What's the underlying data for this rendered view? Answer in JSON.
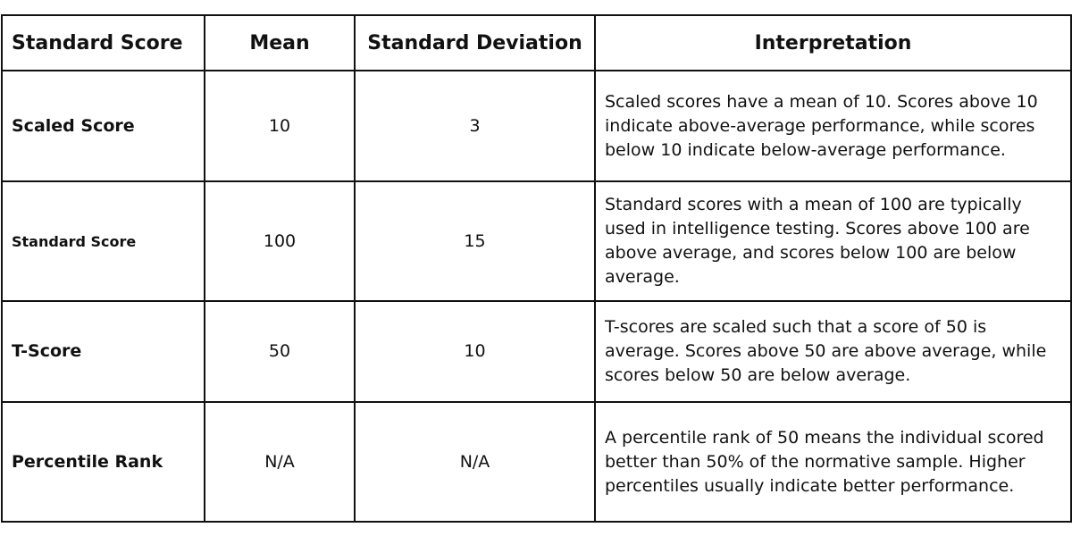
{
  "table": {
    "headers": [
      "Standard Score",
      "Mean",
      "Standard Deviation",
      "Interpretation"
    ],
    "rows": [
      {
        "label": "Scaled Score",
        "mean": "10",
        "sd": "3",
        "interpretation": "Scaled scores have a mean of 10. Scores above 10 indicate above-average performance, while scores below 10 indicate below-average performance."
      },
      {
        "label": "Standard Score",
        "mean": "100",
        "sd": "15",
        "interpretation": "Standard scores with a mean of 100 are typically used in intelligence testing. Scores above 100 are above average, and scores below 100 are below average."
      },
      {
        "label": "T-Score",
        "mean": "50",
        "sd": "10",
        "interpretation": "T-scores are scaled such that a score of 50 is average. Scores above 50 are above average, while scores below 50 are below average."
      },
      {
        "label": "Percentile Rank",
        "mean": "N/A",
        "sd": "N/A",
        "interpretation": "A percentile rank of 50 means the individual scored better than 50% of the normative sample. Higher percentiles usually indicate better performance."
      }
    ]
  }
}
